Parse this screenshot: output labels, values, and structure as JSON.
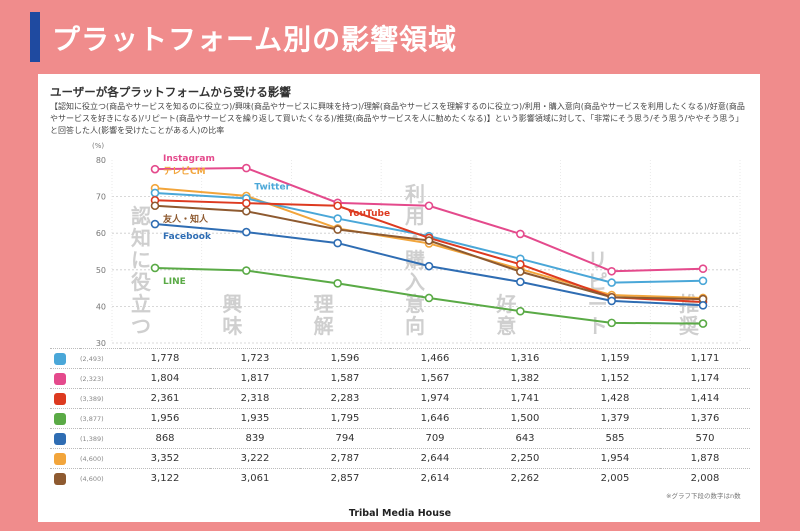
{
  "header": {
    "title": "プラットフォーム別の影響領域"
  },
  "card": {
    "subtitle": "ユーザーが各プラットフォームから受ける影響",
    "description": "【認知に役立つ(商品やサービスを知るのに役立つ)/興味(商品やサービスに興味を持つ)/理解(商品やサービスを理解するのに役立つ)/利用・購入意向(商品やサービスを利用したくなる)/好意(商品やサービスを好きになる)/リピート(商品やサービスを繰り返して買いたくなる)/推奨(商品やサービスを人に勧めたくなる)】という影響領域に対して、「非常にそう思う/そう思う/ややそう思う」と回答した人(影響を受けたことがある人)の比率",
    "note": "※グラフ下段の数字はn数",
    "footer": "Tribal Media House"
  },
  "chart_data": {
    "type": "line",
    "ylabel": "(%)",
    "ylim": [
      30,
      80
    ],
    "yticks": [
      30,
      40,
      50,
      60,
      70,
      80
    ],
    "categories": [
      "認知に役立つ",
      "興味",
      "理解",
      "利用・購入意向",
      "好意",
      "リピート",
      "推奨"
    ],
    "series": [
      {
        "name": "Instagram",
        "color": "#e44a8c",
        "label_cat": 0,
        "label_dy": -8,
        "values": [
          77.5,
          77.8,
          68.3,
          67.5,
          59.8,
          49.6,
          50.3
        ]
      },
      {
        "name": "テレビCM",
        "color": "#f2a53b",
        "label_cat": 0,
        "label_dy": -14,
        "values": [
          72.3,
          70.2,
          61.3,
          57.2,
          50.2,
          43.1,
          42.3
        ]
      },
      {
        "name": "Twitter",
        "color": "#4aa7d8",
        "label_cat": 1,
        "label_dy": -9,
        "values": [
          71.0,
          69.5,
          64.0,
          59.2,
          53.0,
          46.5,
          47.0
        ]
      },
      {
        "name": "YouTube",
        "color": "#dd3a20",
        "label_cat": 2,
        "label_dx": 10,
        "label_dy": 10,
        "values": [
          69.0,
          68.2,
          67.5,
          58.7,
          51.5,
          42.5,
          41.2
        ]
      },
      {
        "name": "友人・知人",
        "color": "#8e5a30",
        "label_cat": 0,
        "label_dy": 16,
        "values": [
          67.5,
          66.0,
          61.0,
          58.0,
          49.5,
          42.5,
          42.0
        ]
      },
      {
        "name": "Facebook",
        "color": "#2f6db3",
        "label_cat": 0,
        "label_dy": 15,
        "values": [
          62.5,
          60.3,
          57.3,
          51.0,
          46.7,
          41.5,
          40.3
        ]
      },
      {
        "name": "LINE",
        "color": "#5aaa46",
        "label_cat": 0,
        "label_dy": 16,
        "values": [
          50.5,
          49.8,
          46.3,
          42.3,
          38.7,
          35.5,
          35.3
        ]
      }
    ]
  },
  "table": {
    "rows": [
      {
        "platform": "Twitter",
        "icon": "twitter-icon",
        "icon_color": "#4aa7d8",
        "n": "(2,493)",
        "values": [
          "1,778",
          "1,723",
          "1,596",
          "1,466",
          "1,316",
          "1,159",
          "1,171"
        ]
      },
      {
        "platform": "Instagram",
        "icon": "instagram-icon",
        "icon_color": "#e44a8c",
        "n": "(2,323)",
        "values": [
          "1,804",
          "1,817",
          "1,587",
          "1,567",
          "1,382",
          "1,152",
          "1,174"
        ]
      },
      {
        "platform": "YouTube",
        "icon": "youtube-icon",
        "icon_color": "#dd3a20",
        "n": "(3,389)",
        "values": [
          "2,361",
          "2,318",
          "2,283",
          "1,974",
          "1,741",
          "1,428",
          "1,414"
        ]
      },
      {
        "platform": "LINE",
        "icon": "line-icon",
        "icon_color": "#5aaa46",
        "n": "(3,877)",
        "values": [
          "1,956",
          "1,935",
          "1,795",
          "1,646",
          "1,500",
          "1,379",
          "1,376"
        ]
      },
      {
        "platform": "Facebook",
        "icon": "facebook-icon",
        "icon_color": "#2f6db3",
        "n": "(1,389)",
        "values": [
          "868",
          "839",
          "794",
          "709",
          "643",
          "585",
          "570"
        ]
      },
      {
        "platform": "テレビCM",
        "icon": "tv-icon",
        "icon_color": "#f2a53b",
        "n": "(4,600)",
        "values": [
          "3,352",
          "3,222",
          "2,787",
          "2,644",
          "2,250",
          "1,954",
          "1,878"
        ]
      },
      {
        "platform": "友人・知人",
        "icon": "people-icon",
        "icon_color": "#8e5a30",
        "n": "(4,600)",
        "values": [
          "3,122",
          "3,061",
          "2,857",
          "2,614",
          "2,262",
          "2,005",
          "2,008"
        ]
      }
    ]
  }
}
